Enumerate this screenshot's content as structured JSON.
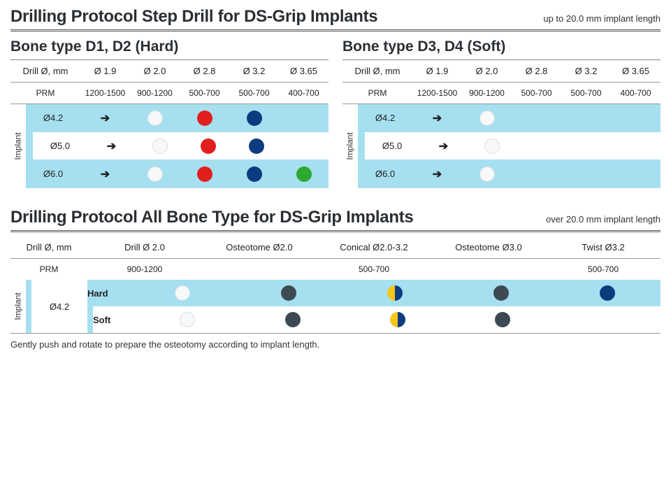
{
  "colors": {
    "white": "#f7f8f9",
    "red": "#e21f1f",
    "navy": "#0d3b80",
    "green": "#2fa82f",
    "slate": "#3d4a54",
    "yellow": "#f5c518",
    "highlight": "#a6e0f0"
  },
  "top": {
    "title": "Drilling Protocol Step Drill for DS-Grip Implants",
    "subtitle": "up to 20.0 mm implant length",
    "left": {
      "panel_title": "Bone type D1, D2 (Hard)",
      "drill_label": "Drill Ø, mm",
      "diameters": [
        "Ø 1.9",
        "Ø 2.0",
        "Ø 2.8",
        "Ø 3.2",
        "Ø 3.65"
      ],
      "prm_label": "PRM",
      "prm": [
        "1200-1500",
        "900-1200",
        "500-700",
        "500-700",
        "400-700"
      ],
      "implant_label": "Implant",
      "rows": [
        {
          "label": "Ø4.2",
          "dots": [
            "arrow",
            "white",
            "red",
            "navy",
            ""
          ]
        },
        {
          "label": "Ø5.0",
          "dots": [
            "arrow",
            "white",
            "red",
            "navy",
            ""
          ]
        },
        {
          "label": "Ø6.0",
          "dots": [
            "arrow",
            "white",
            "red",
            "navy",
            "green"
          ]
        }
      ]
    },
    "right": {
      "panel_title": "Bone type D3, D4 (Soft)",
      "drill_label": "Drill Ø, mm",
      "diameters": [
        "Ø 1.9",
        "Ø 2.0",
        "Ø 2.8",
        "Ø 3.2",
        "Ø 3.65"
      ],
      "prm_label": "PRM",
      "prm": [
        "1200-1500",
        "900-1200",
        "500-700",
        "500-700",
        "400-700"
      ],
      "implant_label": "Implant",
      "rows": [
        {
          "label": "Ø4.2",
          "dots": [
            "arrow",
            "white",
            "",
            "",
            ""
          ]
        },
        {
          "label": "Ø5.0",
          "dots": [
            "arrow",
            "white",
            "",
            "",
            ""
          ]
        },
        {
          "label": "Ø6.0",
          "dots": [
            "arrow",
            "white",
            "",
            "",
            ""
          ]
        }
      ]
    }
  },
  "bottom": {
    "title": "Drilling Protocol All Bone Type for DS-Grip Implants",
    "subtitle": "over 20.0 mm implant length",
    "drill_label": "Drill Ø, mm",
    "columns": [
      "Drill Ø 2.0",
      "Osteotome Ø2.0",
      "Conical Ø2.0-3.2",
      "Osteotome Ø3.0",
      "Twist Ø3.2"
    ],
    "prm_label": "PRM",
    "prm": [
      "900-1200",
      "",
      "500-700",
      "",
      "500-700"
    ],
    "implant_label": "Implant",
    "diameter": "Ø4.2",
    "rows": [
      {
        "label": "Hard",
        "dots": [
          "white",
          "slate",
          "half",
          "slate",
          "navy"
        ]
      },
      {
        "label": "Soft",
        "dots": [
          "white",
          "slate",
          "half",
          "slate",
          ""
        ]
      }
    ],
    "footnote": "Gently push and rotate to prepare the osteotomy according to implant length."
  }
}
